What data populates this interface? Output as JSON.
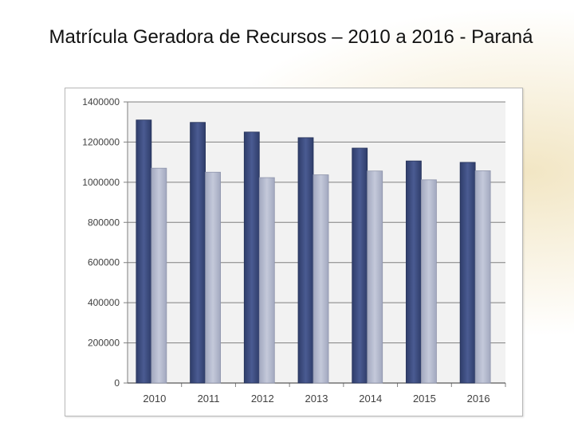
{
  "title": "Matrícula Geradora de Recursos – 2010 a 2016 - Paraná",
  "colors": {
    "series_a": "#3e4e80",
    "series_b": "#b3b8cc",
    "plot_bg": "#f2f2f2",
    "grid": "#7f7f7f"
  },
  "chart_data": {
    "type": "bar",
    "title": "",
    "xlabel": "",
    "ylabel": "",
    "categories": [
      "2010",
      "2011",
      "2012",
      "2013",
      "2014",
      "2015",
      "2016"
    ],
    "series": [
      {
        "values": [
          1310000,
          1298000,
          1250000,
          1222000,
          1170000,
          1106000,
          1099000
        ]
      },
      {
        "values": [
          1070000,
          1050000,
          1023000,
          1037000,
          1056000,
          1012000,
          1057000
        ]
      }
    ],
    "ylim": [
      0,
      1400000
    ],
    "yticks": [
      0,
      200000,
      400000,
      600000,
      800000,
      1000000,
      1200000,
      1400000
    ],
    "ytick_labels": [
      "0",
      "200000",
      "400000",
      "600000",
      "800000",
      "1000000",
      "1200000",
      "1400000"
    ],
    "grid": true,
    "legend": "none"
  }
}
